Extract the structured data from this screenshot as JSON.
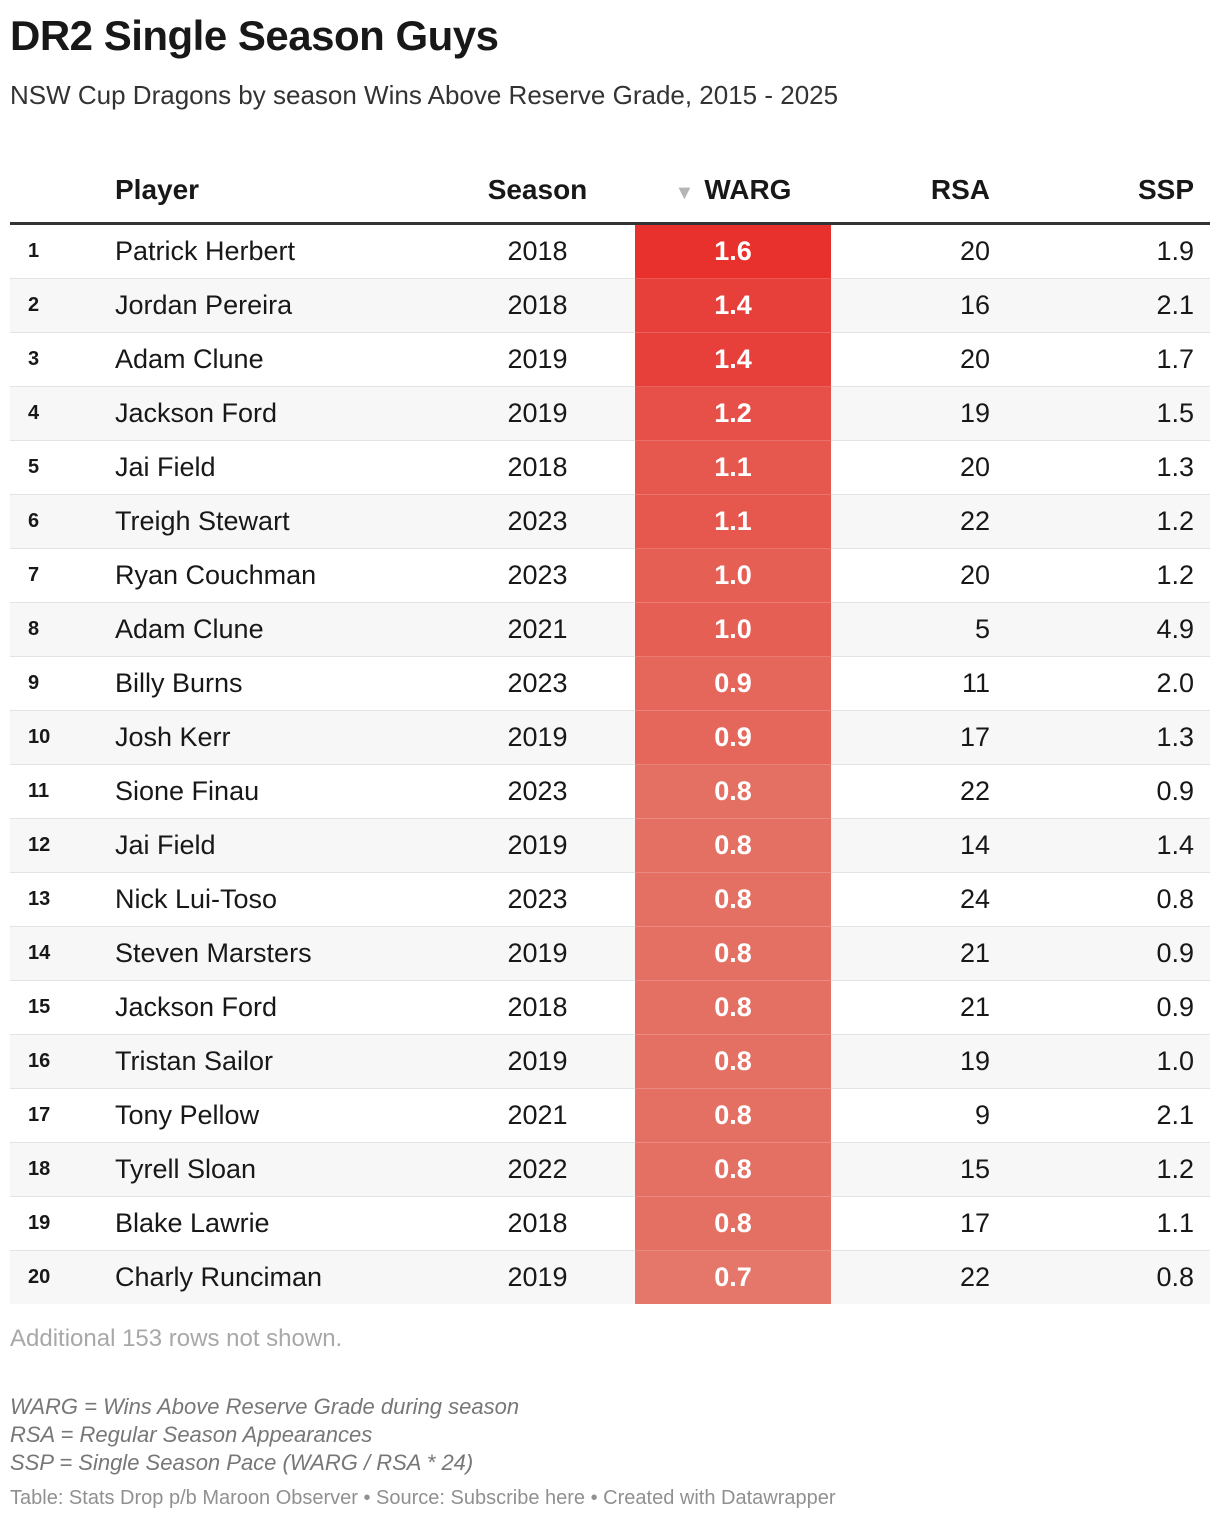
{
  "title": "DR2 Single Season Guys",
  "subtitle": "NSW Cup Dragons by season Wins Above Reserve Grade, 2015 - 2025",
  "columns": {
    "player": "Player",
    "season": "Season",
    "warg": "WARG",
    "rsa": "RSA",
    "ssp": "SSP"
  },
  "sort_indicator": "▼",
  "chart_data": {
    "type": "table",
    "sorted_by": "WARG",
    "sort_direction": "descending",
    "color_scale": {
      "column": "WARG",
      "low_color": "#e4776a",
      "high_color": "#e8302c",
      "min": 0.7,
      "max": 1.6
    },
    "rows": [
      {
        "rank": "1",
        "player": "Patrick Herbert",
        "season": "2018",
        "warg": "1.6",
        "rsa": "20",
        "ssp": "1.9"
      },
      {
        "rank": "2",
        "player": "Jordan Pereira",
        "season": "2018",
        "warg": "1.4",
        "rsa": "16",
        "ssp": "2.1"
      },
      {
        "rank": "3",
        "player": "Adam Clune",
        "season": "2019",
        "warg": "1.4",
        "rsa": "20",
        "ssp": "1.7"
      },
      {
        "rank": "4",
        "player": "Jackson Ford",
        "season": "2019",
        "warg": "1.2",
        "rsa": "19",
        "ssp": "1.5"
      },
      {
        "rank": "5",
        "player": "Jai Field",
        "season": "2018",
        "warg": "1.1",
        "rsa": "20",
        "ssp": "1.3"
      },
      {
        "rank": "6",
        "player": "Treigh Stewart",
        "season": "2023",
        "warg": "1.1",
        "rsa": "22",
        "ssp": "1.2"
      },
      {
        "rank": "7",
        "player": "Ryan Couchman",
        "season": "2023",
        "warg": "1.0",
        "rsa": "20",
        "ssp": "1.2"
      },
      {
        "rank": "8",
        "player": "Adam Clune",
        "season": "2021",
        "warg": "1.0",
        "rsa": "5",
        "ssp": "4.9"
      },
      {
        "rank": "9",
        "player": "Billy Burns",
        "season": "2023",
        "warg": "0.9",
        "rsa": "11",
        "ssp": "2.0"
      },
      {
        "rank": "10",
        "player": "Josh Kerr",
        "season": "2019",
        "warg": "0.9",
        "rsa": "17",
        "ssp": "1.3"
      },
      {
        "rank": "11",
        "player": "Sione Finau",
        "season": "2023",
        "warg": "0.8",
        "rsa": "22",
        "ssp": "0.9"
      },
      {
        "rank": "12",
        "player": "Jai Field",
        "season": "2019",
        "warg": "0.8",
        "rsa": "14",
        "ssp": "1.4"
      },
      {
        "rank": "13",
        "player": "Nick Lui-Toso",
        "season": "2023",
        "warg": "0.8",
        "rsa": "24",
        "ssp": "0.8"
      },
      {
        "rank": "14",
        "player": "Steven Marsters",
        "season": "2019",
        "warg": "0.8",
        "rsa": "21",
        "ssp": "0.9"
      },
      {
        "rank": "15",
        "player": "Jackson Ford",
        "season": "2018",
        "warg": "0.8",
        "rsa": "21",
        "ssp": "0.9"
      },
      {
        "rank": "16",
        "player": "Tristan Sailor",
        "season": "2019",
        "warg": "0.8",
        "rsa": "19",
        "ssp": "1.0"
      },
      {
        "rank": "17",
        "player": "Tony Pellow",
        "season": "2021",
        "warg": "0.8",
        "rsa": "9",
        "ssp": "2.1"
      },
      {
        "rank": "18",
        "player": "Tyrell Sloan",
        "season": "2022",
        "warg": "0.8",
        "rsa": "15",
        "ssp": "1.2"
      },
      {
        "rank": "19",
        "player": "Blake Lawrie",
        "season": "2018",
        "warg": "0.8",
        "rsa": "17",
        "ssp": "1.1"
      },
      {
        "rank": "20",
        "player": "Charly Runciman",
        "season": "2019",
        "warg": "0.7",
        "rsa": "22",
        "ssp": "0.8"
      }
    ]
  },
  "more_rows_note": "Additional 153 rows not shown.",
  "footnotes": [
    "WARG = Wins Above Reserve Grade during season",
    "RSA = Regular Season Appearances",
    "SSP = Single Season Pace (WARG / RSA * 24)"
  ],
  "source_line": "Table: Stats Drop p/b Maroon Observer • Source: Subscribe here • Created with Datawrapper"
}
